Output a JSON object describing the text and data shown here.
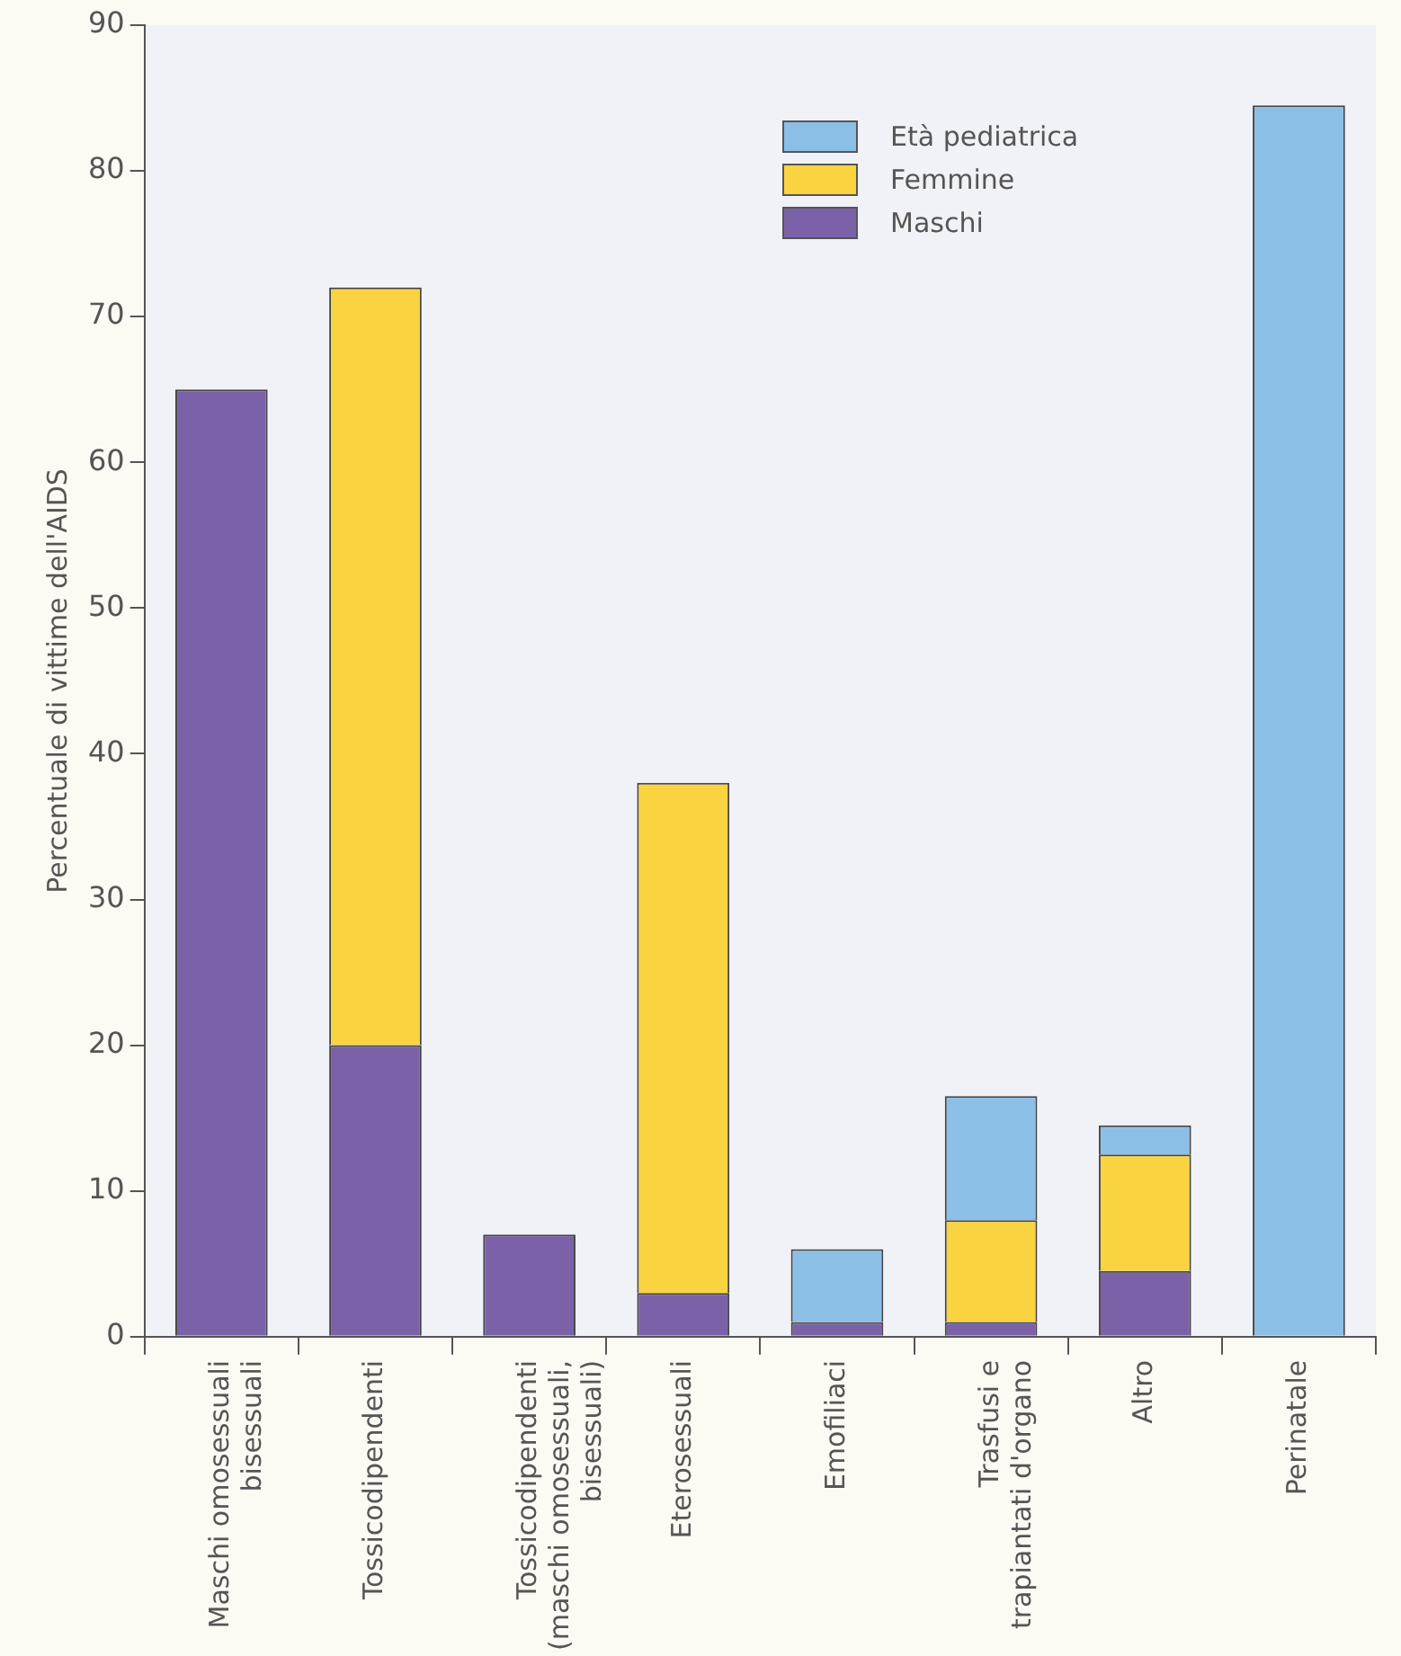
{
  "chart_data": {
    "type": "bar",
    "stacked": true,
    "ylabel": "Percentuale di vittime dell'AIDS",
    "categories": [
      "Maschi omosessuali bisessuali",
      "Tossicodipendenti",
      "Tossicodipendenti (maschi omosessuali, bisessuali)",
      "Eterosessuali",
      "Emofiliaci",
      "Trasfusi e trapiantati d'organo",
      "Altro",
      "Perinatale"
    ],
    "series": [
      {
        "name": "Maschi",
        "color": "#7b62a8",
        "values": [
          65,
          20,
          7,
          3,
          1,
          1,
          4.5,
          null
        ]
      },
      {
        "name": "Femmine",
        "color": "#f9d340",
        "values": [
          null,
          52,
          null,
          35,
          null,
          7,
          8,
          null
        ]
      },
      {
        "name": "Età pediatrica",
        "color": "#8cbfe6",
        "values": [
          null,
          null,
          null,
          null,
          5,
          8.5,
          2,
          84.5
        ]
      }
    ],
    "ylim": [
      0,
      90
    ],
    "yticks": [
      0,
      10,
      20,
      30,
      40,
      50,
      60,
      70,
      80,
      90
    ],
    "grid": false,
    "legend": "top right"
  }
}
